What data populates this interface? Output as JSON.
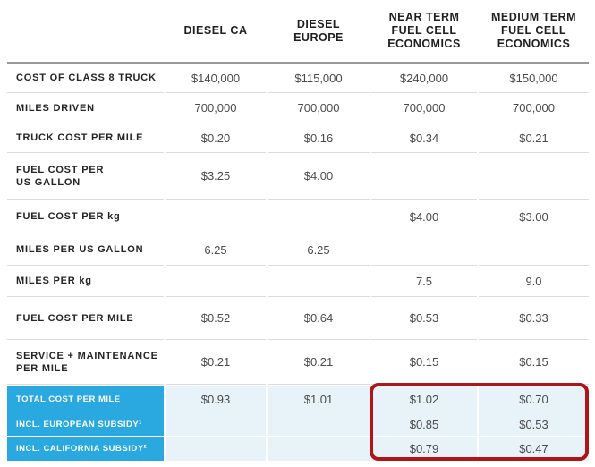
{
  "chart_data": {
    "type": "table",
    "title": "",
    "columns": [
      "DIESEL CA",
      "DIESEL\nEUROPE",
      "NEAR TERM\nFUEL CELL\nECONOMICS",
      "MEDIUM TERM\nFUEL CELL\nECONOMICS"
    ],
    "rows": [
      {
        "label": "COST OF CLASS 8 TRUCK",
        "values": [
          "$140,000",
          "$115,000",
          "$240,000",
          "$150,000"
        ],
        "highlight": false
      },
      {
        "label": "MILES DRIVEN",
        "values": [
          "700,000",
          "700,000",
          "700,000",
          "700,000"
        ],
        "highlight": false
      },
      {
        "label": "TRUCK COST PER MILE",
        "values": [
          "$0.20",
          "$0.16",
          "$0.34",
          "$0.21"
        ],
        "highlight": false
      },
      {
        "label": "FUEL COST PER\nUS GALLON",
        "values": [
          "$3.25",
          "$4.00",
          "",
          ""
        ],
        "highlight": false
      },
      {
        "label": "FUEL COST PER kg",
        "values": [
          "",
          "",
          "$4.00",
          "$3.00"
        ],
        "highlight": false
      },
      {
        "label": "MILES PER US GALLON",
        "values": [
          "6.25",
          "6.25",
          "",
          ""
        ],
        "highlight": false
      },
      {
        "label": "MILES PER kg",
        "values": [
          "",
          "",
          "7.5",
          "9.0"
        ],
        "highlight": false
      },
      {
        "label": "FUEL COST PER MILE",
        "values": [
          "$0.52",
          "$0.64",
          "$0.53",
          "$0.33"
        ],
        "highlight": false
      },
      {
        "label": "SERVICE + MAINTENANCE\nPER MILE",
        "values": [
          "$0.21",
          "$0.21",
          "$0.15",
          "$0.15"
        ],
        "highlight": false
      },
      {
        "label": "TOTAL COST PER MILE",
        "values": [
          "$0.93",
          "$1.01",
          "$1.02",
          "$0.70"
        ],
        "highlight": true
      },
      {
        "label": "INCL. EUROPEAN SUBSIDY¹",
        "values": [
          "",
          "",
          "$0.85",
          "$0.53"
        ],
        "highlight": true
      },
      {
        "label": "INCL. CALIFORNIA SUBSIDY²",
        "values": [
          "",
          "",
          "$0.79",
          "$0.47"
        ],
        "highlight": true
      }
    ],
    "annotation": {
      "shape": "red-rounded-rectangle",
      "covers": "NEAR TERM and MEDIUM TERM fuel cell columns of the three total-cost rows"
    },
    "layout": {
      "grid": "row separators between all rows, heavy gray rule under header",
      "legend": "none"
    },
    "colors": {
      "highlight_label_bg": "#29A9E0",
      "highlight_value_bg": "#E8F3F9",
      "annotation_red": "#AE1418",
      "header_rule": "#98999B",
      "row_separator": "#DADCDE",
      "label_text": "#242426",
      "value_text": "#4A4A4C"
    }
  }
}
